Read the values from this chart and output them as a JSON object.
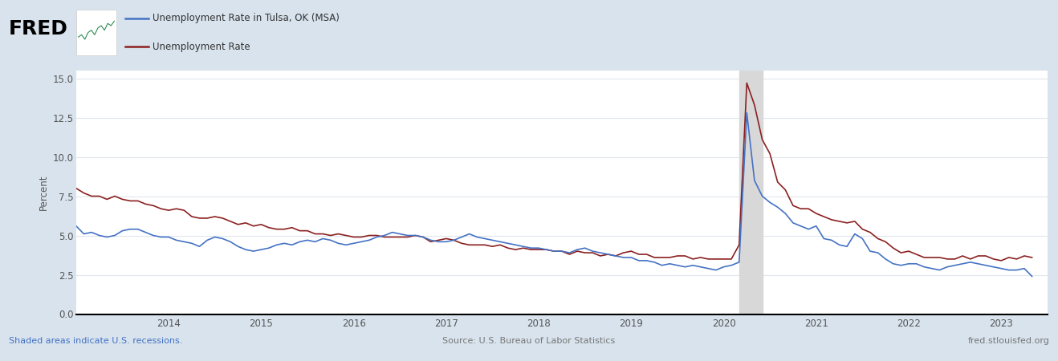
{
  "ylabel": "Percent",
  "fig_bg_color": "#d8e3ed",
  "plot_bg_color": "#ffffff",
  "grid_color": "#e0e6ed",
  "tulsa_color": "#4472c4",
  "us_color": "#8b2020",
  "recession_color": "#d8d8d8",
  "recession_start": 2020.17,
  "recession_end": 2020.42,
  "ylim": [
    0.0,
    15.5
  ],
  "yticks": [
    0.0,
    2.5,
    5.0,
    7.5,
    10.0,
    12.5,
    15.0
  ],
  "legend_tulsa": "Unemployment Rate in Tulsa, OK (MSA)",
  "legend_us": "Unemployment Rate",
  "footer_left": "Shaded areas indicate U.S. recessions.",
  "footer_center": "Source: U.S. Bureau of Labor Statistics",
  "footer_right": "fred.stlouisfed.org",
  "tulsa_data": [
    [
      2013.0,
      5.6
    ],
    [
      2013.083,
      5.1
    ],
    [
      2013.167,
      5.2
    ],
    [
      2013.25,
      5.0
    ],
    [
      2013.333,
      4.9
    ],
    [
      2013.417,
      5.0
    ],
    [
      2013.5,
      5.3
    ],
    [
      2013.583,
      5.4
    ],
    [
      2013.667,
      5.4
    ],
    [
      2013.75,
      5.2
    ],
    [
      2013.833,
      5.0
    ],
    [
      2013.917,
      4.9
    ],
    [
      2014.0,
      4.9
    ],
    [
      2014.083,
      4.7
    ],
    [
      2014.167,
      4.6
    ],
    [
      2014.25,
      4.5
    ],
    [
      2014.333,
      4.3
    ],
    [
      2014.417,
      4.7
    ],
    [
      2014.5,
      4.9
    ],
    [
      2014.583,
      4.8
    ],
    [
      2014.667,
      4.6
    ],
    [
      2014.75,
      4.3
    ],
    [
      2014.833,
      4.1
    ],
    [
      2014.917,
      4.0
    ],
    [
      2015.0,
      4.1
    ],
    [
      2015.083,
      4.2
    ],
    [
      2015.167,
      4.4
    ],
    [
      2015.25,
      4.5
    ],
    [
      2015.333,
      4.4
    ],
    [
      2015.417,
      4.6
    ],
    [
      2015.5,
      4.7
    ],
    [
      2015.583,
      4.6
    ],
    [
      2015.667,
      4.8
    ],
    [
      2015.75,
      4.7
    ],
    [
      2015.833,
      4.5
    ],
    [
      2015.917,
      4.4
    ],
    [
      2016.0,
      4.5
    ],
    [
      2016.083,
      4.6
    ],
    [
      2016.167,
      4.7
    ],
    [
      2016.25,
      4.9
    ],
    [
      2016.333,
      5.0
    ],
    [
      2016.417,
      5.2
    ],
    [
      2016.5,
      5.1
    ],
    [
      2016.583,
      5.0
    ],
    [
      2016.667,
      5.0
    ],
    [
      2016.75,
      4.9
    ],
    [
      2016.833,
      4.7
    ],
    [
      2016.917,
      4.6
    ],
    [
      2017.0,
      4.6
    ],
    [
      2017.083,
      4.7
    ],
    [
      2017.167,
      4.9
    ],
    [
      2017.25,
      5.1
    ],
    [
      2017.333,
      4.9
    ],
    [
      2017.417,
      4.8
    ],
    [
      2017.5,
      4.7
    ],
    [
      2017.583,
      4.6
    ],
    [
      2017.667,
      4.5
    ],
    [
      2017.75,
      4.4
    ],
    [
      2017.833,
      4.3
    ],
    [
      2017.917,
      4.2
    ],
    [
      2018.0,
      4.2
    ],
    [
      2018.083,
      4.1
    ],
    [
      2018.167,
      4.0
    ],
    [
      2018.25,
      4.0
    ],
    [
      2018.333,
      3.9
    ],
    [
      2018.417,
      4.1
    ],
    [
      2018.5,
      4.2
    ],
    [
      2018.583,
      4.0
    ],
    [
      2018.667,
      3.9
    ],
    [
      2018.75,
      3.8
    ],
    [
      2018.833,
      3.7
    ],
    [
      2018.917,
      3.6
    ],
    [
      2019.0,
      3.6
    ],
    [
      2019.083,
      3.4
    ],
    [
      2019.167,
      3.4
    ],
    [
      2019.25,
      3.3
    ],
    [
      2019.333,
      3.1
    ],
    [
      2019.417,
      3.2
    ],
    [
      2019.5,
      3.1
    ],
    [
      2019.583,
      3.0
    ],
    [
      2019.667,
      3.1
    ],
    [
      2019.75,
      3.0
    ],
    [
      2019.833,
      2.9
    ],
    [
      2019.917,
      2.8
    ],
    [
      2020.0,
      3.0
    ],
    [
      2020.083,
      3.1
    ],
    [
      2020.167,
      3.3
    ],
    [
      2020.25,
      12.8
    ],
    [
      2020.333,
      8.5
    ],
    [
      2020.417,
      7.5
    ],
    [
      2020.5,
      7.1
    ],
    [
      2020.583,
      6.8
    ],
    [
      2020.667,
      6.4
    ],
    [
      2020.75,
      5.8
    ],
    [
      2020.833,
      5.6
    ],
    [
      2020.917,
      5.4
    ],
    [
      2021.0,
      5.6
    ],
    [
      2021.083,
      4.8
    ],
    [
      2021.167,
      4.7
    ],
    [
      2021.25,
      4.4
    ],
    [
      2021.333,
      4.3
    ],
    [
      2021.417,
      5.1
    ],
    [
      2021.5,
      4.8
    ],
    [
      2021.583,
      4.0
    ],
    [
      2021.667,
      3.9
    ],
    [
      2021.75,
      3.5
    ],
    [
      2021.833,
      3.2
    ],
    [
      2021.917,
      3.1
    ],
    [
      2022.0,
      3.2
    ],
    [
      2022.083,
      3.2
    ],
    [
      2022.167,
      3.0
    ],
    [
      2022.25,
      2.9
    ],
    [
      2022.333,
      2.8
    ],
    [
      2022.417,
      3.0
    ],
    [
      2022.5,
      3.1
    ],
    [
      2022.583,
      3.2
    ],
    [
      2022.667,
      3.3
    ],
    [
      2022.75,
      3.2
    ],
    [
      2022.833,
      3.1
    ],
    [
      2022.917,
      3.0
    ],
    [
      2023.0,
      2.9
    ],
    [
      2023.083,
      2.8
    ],
    [
      2023.167,
      2.8
    ],
    [
      2023.25,
      2.9
    ],
    [
      2023.333,
      2.4
    ]
  ],
  "us_data": [
    [
      2013.0,
      8.0
    ],
    [
      2013.083,
      7.7
    ],
    [
      2013.167,
      7.5
    ],
    [
      2013.25,
      7.5
    ],
    [
      2013.333,
      7.3
    ],
    [
      2013.417,
      7.5
    ],
    [
      2013.5,
      7.3
    ],
    [
      2013.583,
      7.2
    ],
    [
      2013.667,
      7.2
    ],
    [
      2013.75,
      7.0
    ],
    [
      2013.833,
      6.9
    ],
    [
      2013.917,
      6.7
    ],
    [
      2014.0,
      6.6
    ],
    [
      2014.083,
      6.7
    ],
    [
      2014.167,
      6.6
    ],
    [
      2014.25,
      6.2
    ],
    [
      2014.333,
      6.1
    ],
    [
      2014.417,
      6.1
    ],
    [
      2014.5,
      6.2
    ],
    [
      2014.583,
      6.1
    ],
    [
      2014.667,
      5.9
    ],
    [
      2014.75,
      5.7
    ],
    [
      2014.833,
      5.8
    ],
    [
      2014.917,
      5.6
    ],
    [
      2015.0,
      5.7
    ],
    [
      2015.083,
      5.5
    ],
    [
      2015.167,
      5.4
    ],
    [
      2015.25,
      5.4
    ],
    [
      2015.333,
      5.5
    ],
    [
      2015.417,
      5.3
    ],
    [
      2015.5,
      5.3
    ],
    [
      2015.583,
      5.1
    ],
    [
      2015.667,
      5.1
    ],
    [
      2015.75,
      5.0
    ],
    [
      2015.833,
      5.1
    ],
    [
      2015.917,
      5.0
    ],
    [
      2016.0,
      4.9
    ],
    [
      2016.083,
      4.9
    ],
    [
      2016.167,
      5.0
    ],
    [
      2016.25,
      5.0
    ],
    [
      2016.333,
      4.9
    ],
    [
      2016.417,
      4.9
    ],
    [
      2016.5,
      4.9
    ],
    [
      2016.583,
      4.9
    ],
    [
      2016.667,
      5.0
    ],
    [
      2016.75,
      4.9
    ],
    [
      2016.833,
      4.6
    ],
    [
      2016.917,
      4.7
    ],
    [
      2017.0,
      4.8
    ],
    [
      2017.083,
      4.7
    ],
    [
      2017.167,
      4.5
    ],
    [
      2017.25,
      4.4
    ],
    [
      2017.333,
      4.4
    ],
    [
      2017.417,
      4.4
    ],
    [
      2017.5,
      4.3
    ],
    [
      2017.583,
      4.4
    ],
    [
      2017.667,
      4.2
    ],
    [
      2017.75,
      4.1
    ],
    [
      2017.833,
      4.2
    ],
    [
      2017.917,
      4.1
    ],
    [
      2018.0,
      4.1
    ],
    [
      2018.083,
      4.1
    ],
    [
      2018.167,
      4.0
    ],
    [
      2018.25,
      4.0
    ],
    [
      2018.333,
      3.8
    ],
    [
      2018.417,
      4.0
    ],
    [
      2018.5,
      3.9
    ],
    [
      2018.583,
      3.9
    ],
    [
      2018.667,
      3.7
    ],
    [
      2018.75,
      3.8
    ],
    [
      2018.833,
      3.7
    ],
    [
      2018.917,
      3.9
    ],
    [
      2019.0,
      4.0
    ],
    [
      2019.083,
      3.8
    ],
    [
      2019.167,
      3.8
    ],
    [
      2019.25,
      3.6
    ],
    [
      2019.333,
      3.6
    ],
    [
      2019.417,
      3.6
    ],
    [
      2019.5,
      3.7
    ],
    [
      2019.583,
      3.7
    ],
    [
      2019.667,
      3.5
    ],
    [
      2019.75,
      3.6
    ],
    [
      2019.833,
      3.5
    ],
    [
      2019.917,
      3.5
    ],
    [
      2020.0,
      3.5
    ],
    [
      2020.083,
      3.5
    ],
    [
      2020.167,
      4.4
    ],
    [
      2020.25,
      14.7
    ],
    [
      2020.333,
      13.3
    ],
    [
      2020.417,
      11.1
    ],
    [
      2020.5,
      10.2
    ],
    [
      2020.583,
      8.4
    ],
    [
      2020.667,
      7.9
    ],
    [
      2020.75,
      6.9
    ],
    [
      2020.833,
      6.7
    ],
    [
      2020.917,
      6.7
    ],
    [
      2021.0,
      6.4
    ],
    [
      2021.083,
      6.2
    ],
    [
      2021.167,
      6.0
    ],
    [
      2021.25,
      5.9
    ],
    [
      2021.333,
      5.8
    ],
    [
      2021.417,
      5.9
    ],
    [
      2021.5,
      5.4
    ],
    [
      2021.583,
      5.2
    ],
    [
      2021.667,
      4.8
    ],
    [
      2021.75,
      4.6
    ],
    [
      2021.833,
      4.2
    ],
    [
      2021.917,
      3.9
    ],
    [
      2022.0,
      4.0
    ],
    [
      2022.083,
      3.8
    ],
    [
      2022.167,
      3.6
    ],
    [
      2022.25,
      3.6
    ],
    [
      2022.333,
      3.6
    ],
    [
      2022.417,
      3.5
    ],
    [
      2022.5,
      3.5
    ],
    [
      2022.583,
      3.7
    ],
    [
      2022.667,
      3.5
    ],
    [
      2022.75,
      3.7
    ],
    [
      2022.833,
      3.7
    ],
    [
      2022.917,
      3.5
    ],
    [
      2023.0,
      3.4
    ],
    [
      2023.083,
      3.6
    ],
    [
      2023.167,
      3.5
    ],
    [
      2023.25,
      3.7
    ],
    [
      2023.333,
      3.6
    ]
  ],
  "xlim_start": 2013.0,
  "xlim_end": 2023.5,
  "xtick_years": [
    2014,
    2015,
    2016,
    2017,
    2018,
    2019,
    2020,
    2021,
    2022,
    2023
  ]
}
